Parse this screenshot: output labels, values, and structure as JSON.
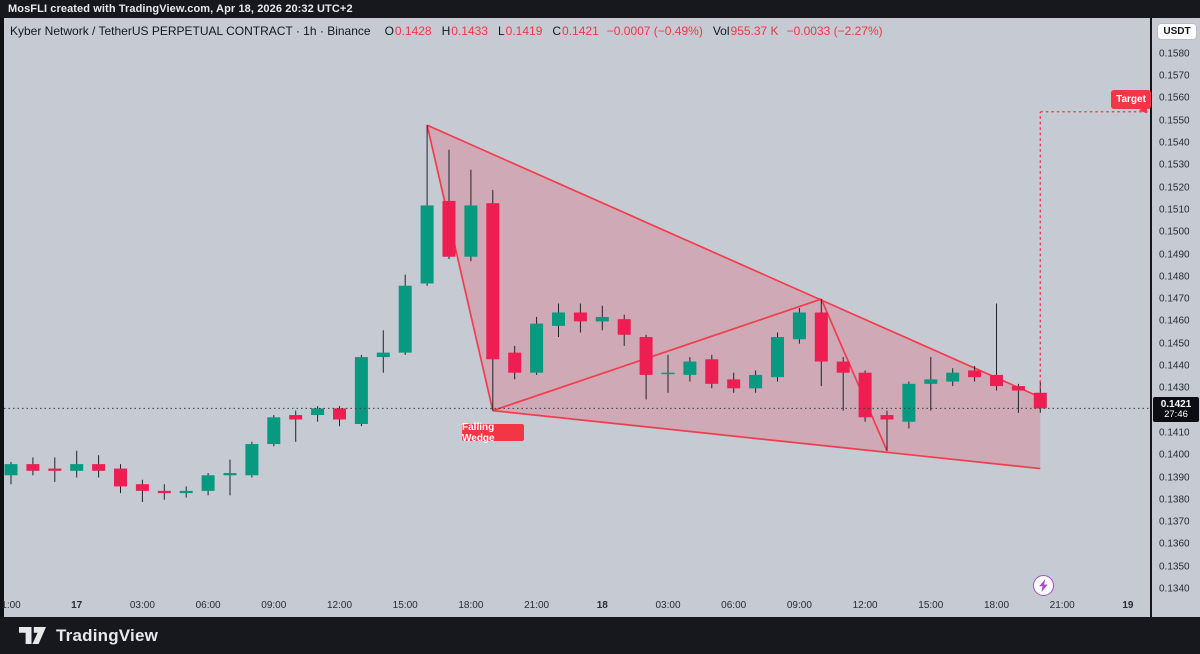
{
  "watermark": {
    "top_text": "MosFLI created with TradingView.com, Apr 18, 2026 20:32 UTC+2",
    "brand": "TradingView"
  },
  "header": {
    "symbol_title": "Kyber Network / TetherUS PERPETUAL CONTRACT · 1h · Binance",
    "o_label": "O",
    "o": "0.1428",
    "h_label": "H",
    "h": "0.1433",
    "l_label": "L",
    "l": "0.1419",
    "c_label": "C",
    "c": "0.1421",
    "change": "−0.0007 (−0.49%)",
    "vol_label": "Vol",
    "vol": "955.37 K",
    "vol_change": "−0.0033 (−2.27%)"
  },
  "axes": {
    "currency_button": "USDT",
    "price_ticks": [
      "0.1580",
      "0.1570",
      "0.1560",
      "0.1550",
      "0.1540",
      "0.1530",
      "0.1520",
      "0.1510",
      "0.1500",
      "0.1490",
      "0.1480",
      "0.1470",
      "0.1460",
      "0.1450",
      "0.1440",
      "0.1430",
      "0.1410",
      "0.1400",
      "0.1390",
      "0.1380",
      "0.1370",
      "0.1360",
      "0.1350",
      "0.1340"
    ],
    "time_ticks": [
      {
        "i": 0,
        "label": "1:00",
        "bold": false
      },
      {
        "i": 3,
        "label": "17",
        "bold": true
      },
      {
        "i": 6,
        "label": "03:00",
        "bold": false
      },
      {
        "i": 9,
        "label": "06:00",
        "bold": false
      },
      {
        "i": 12,
        "label": "09:00",
        "bold": false
      },
      {
        "i": 15,
        "label": "12:00",
        "bold": false
      },
      {
        "i": 18,
        "label": "15:00",
        "bold": false
      },
      {
        "i": 21,
        "label": "18:00",
        "bold": false
      },
      {
        "i": 24,
        "label": "21:00",
        "bold": false
      },
      {
        "i": 27,
        "label": "18",
        "bold": true
      },
      {
        "i": 30,
        "label": "03:00",
        "bold": false
      },
      {
        "i": 33,
        "label": "06:00",
        "bold": false
      },
      {
        "i": 36,
        "label": "09:00",
        "bold": false
      },
      {
        "i": 39,
        "label": "12:00",
        "bold": false
      },
      {
        "i": 42,
        "label": "15:00",
        "bold": false
      },
      {
        "i": 45,
        "label": "18:00",
        "bold": false
      },
      {
        "i": 48,
        "label": "21:00",
        "bold": false
      },
      {
        "i": 51,
        "label": "19",
        "bold": true
      }
    ]
  },
  "price_line": {
    "price": "0.1421",
    "countdown": "27:46"
  },
  "labels": {
    "falling_wedge": "Falling Wedge",
    "target": "Target"
  },
  "colors": {
    "up": "#089981",
    "down": "#ee1d52",
    "drawing": "#f33c4e",
    "drawing_fill": "rgba(240,45,70,0.21)",
    "label_bg": "#f23645",
    "price_line": "#3a3e46",
    "bg": "#c6cad3",
    "dark_bar": "#16181d",
    "bolt": "#a64dc8"
  },
  "chart_data": {
    "type": "candlestick",
    "title": "Kyber Network / TetherUS Perpetual Contract, 1h, Binance",
    "interval": "1h",
    "start_time_label": "Apr 16 21:00",
    "ylim": [
      0.1336,
      0.1585
    ],
    "ohlc_note": "each candle = [open, high, low, close]",
    "candles": [
      [
        0.1391,
        0.1397,
        0.1387,
        0.1396
      ],
      [
        0.1396,
        0.1399,
        0.1391,
        0.1393
      ],
      [
        0.1394,
        0.1399,
        0.1388,
        0.1393
      ],
      [
        0.1393,
        0.1402,
        0.139,
        0.1396
      ],
      [
        0.1396,
        0.14,
        0.139,
        0.1393
      ],
      [
        0.1394,
        0.1396,
        0.1383,
        0.1386
      ],
      [
        0.1387,
        0.1389,
        0.1379,
        0.1384
      ],
      [
        0.1384,
        0.1387,
        0.138,
        0.1383
      ],
      [
        0.1383,
        0.1386,
        0.1381,
        0.1384
      ],
      [
        0.1384,
        0.1392,
        0.1382,
        0.1391
      ],
      [
        0.1391,
        0.1398,
        0.1382,
        0.1392
      ],
      [
        0.1391,
        0.1406,
        0.139,
        0.1405
      ],
      [
        0.1405,
        0.1418,
        0.1404,
        0.1417
      ],
      [
        0.1418,
        0.142,
        0.1406,
        0.1416
      ],
      [
        0.1418,
        0.1422,
        0.1415,
        0.1421
      ],
      [
        0.1421,
        0.1422,
        0.1413,
        0.1416
      ],
      [
        0.1414,
        0.1445,
        0.1413,
        0.1444
      ],
      [
        0.1444,
        0.1456,
        0.1437,
        0.1446
      ],
      [
        0.1446,
        0.1481,
        0.1445,
        0.1476
      ],
      [
        0.1477,
        0.1548,
        0.1476,
        0.1512
      ],
      [
        0.1514,
        0.1537,
        0.1488,
        0.1489
      ],
      [
        0.1489,
        0.1528,
        0.1487,
        0.1512
      ],
      [
        0.1513,
        0.1519,
        0.142,
        0.1443
      ],
      [
        0.1446,
        0.1449,
        0.1434,
        0.1437
      ],
      [
        0.1437,
        0.1462,
        0.1436,
        0.1459
      ],
      [
        0.1458,
        0.1468,
        0.1453,
        0.1464
      ],
      [
        0.1464,
        0.1468,
        0.1455,
        0.146
      ],
      [
        0.146,
        0.1467,
        0.1456,
        0.1462
      ],
      [
        0.1461,
        0.1463,
        0.1449,
        0.1454
      ],
      [
        0.1453,
        0.1454,
        0.1425,
        0.1436
      ],
      [
        0.1437,
        0.1445,
        0.1428,
        0.1437
      ],
      [
        0.1436,
        0.1444,
        0.1433,
        0.1442
      ],
      [
        0.1443,
        0.1445,
        0.143,
        0.1432
      ],
      [
        0.1434,
        0.1437,
        0.1428,
        0.143
      ],
      [
        0.143,
        0.1438,
        0.1428,
        0.1436
      ],
      [
        0.1435,
        0.1455,
        0.1433,
        0.1453
      ],
      [
        0.1452,
        0.1466,
        0.145,
        0.1464
      ],
      [
        0.1464,
        0.147,
        0.1431,
        0.1442
      ],
      [
        0.1442,
        0.1444,
        0.142,
        0.1437
      ],
      [
        0.1437,
        0.1438,
        0.1415,
        0.1417
      ],
      [
        0.1418,
        0.142,
        0.1402,
        0.1416
      ],
      [
        0.1415,
        0.1433,
        0.1412,
        0.1432
      ],
      [
        0.1432,
        0.1444,
        0.142,
        0.1434
      ],
      [
        0.1433,
        0.1439,
        0.1431,
        0.1437
      ],
      [
        0.1438,
        0.144,
        0.1433,
        0.1435
      ],
      [
        0.1436,
        0.1468,
        0.1429,
        0.1431
      ],
      [
        0.1431,
        0.1432,
        0.1419,
        0.1429
      ],
      [
        0.1428,
        0.1433,
        0.1419,
        0.1421
      ]
    ],
    "current_price": 0.1421,
    "drawings": {
      "falling_wedge": {
        "label": "Falling Wedge",
        "points_index_price": {
          "A": [
            19,
            0.1548
          ],
          "B": [
            22,
            0.142
          ],
          "C": [
            37,
            0.147
          ],
          "D": [
            40,
            0.1402
          ],
          "upper_end": [
            47,
            0.1426
          ],
          "lower_end": [
            47,
            0.1394
          ]
        }
      },
      "target": {
        "label": "Target",
        "price": 0.1554,
        "from_index": 47
      }
    }
  }
}
